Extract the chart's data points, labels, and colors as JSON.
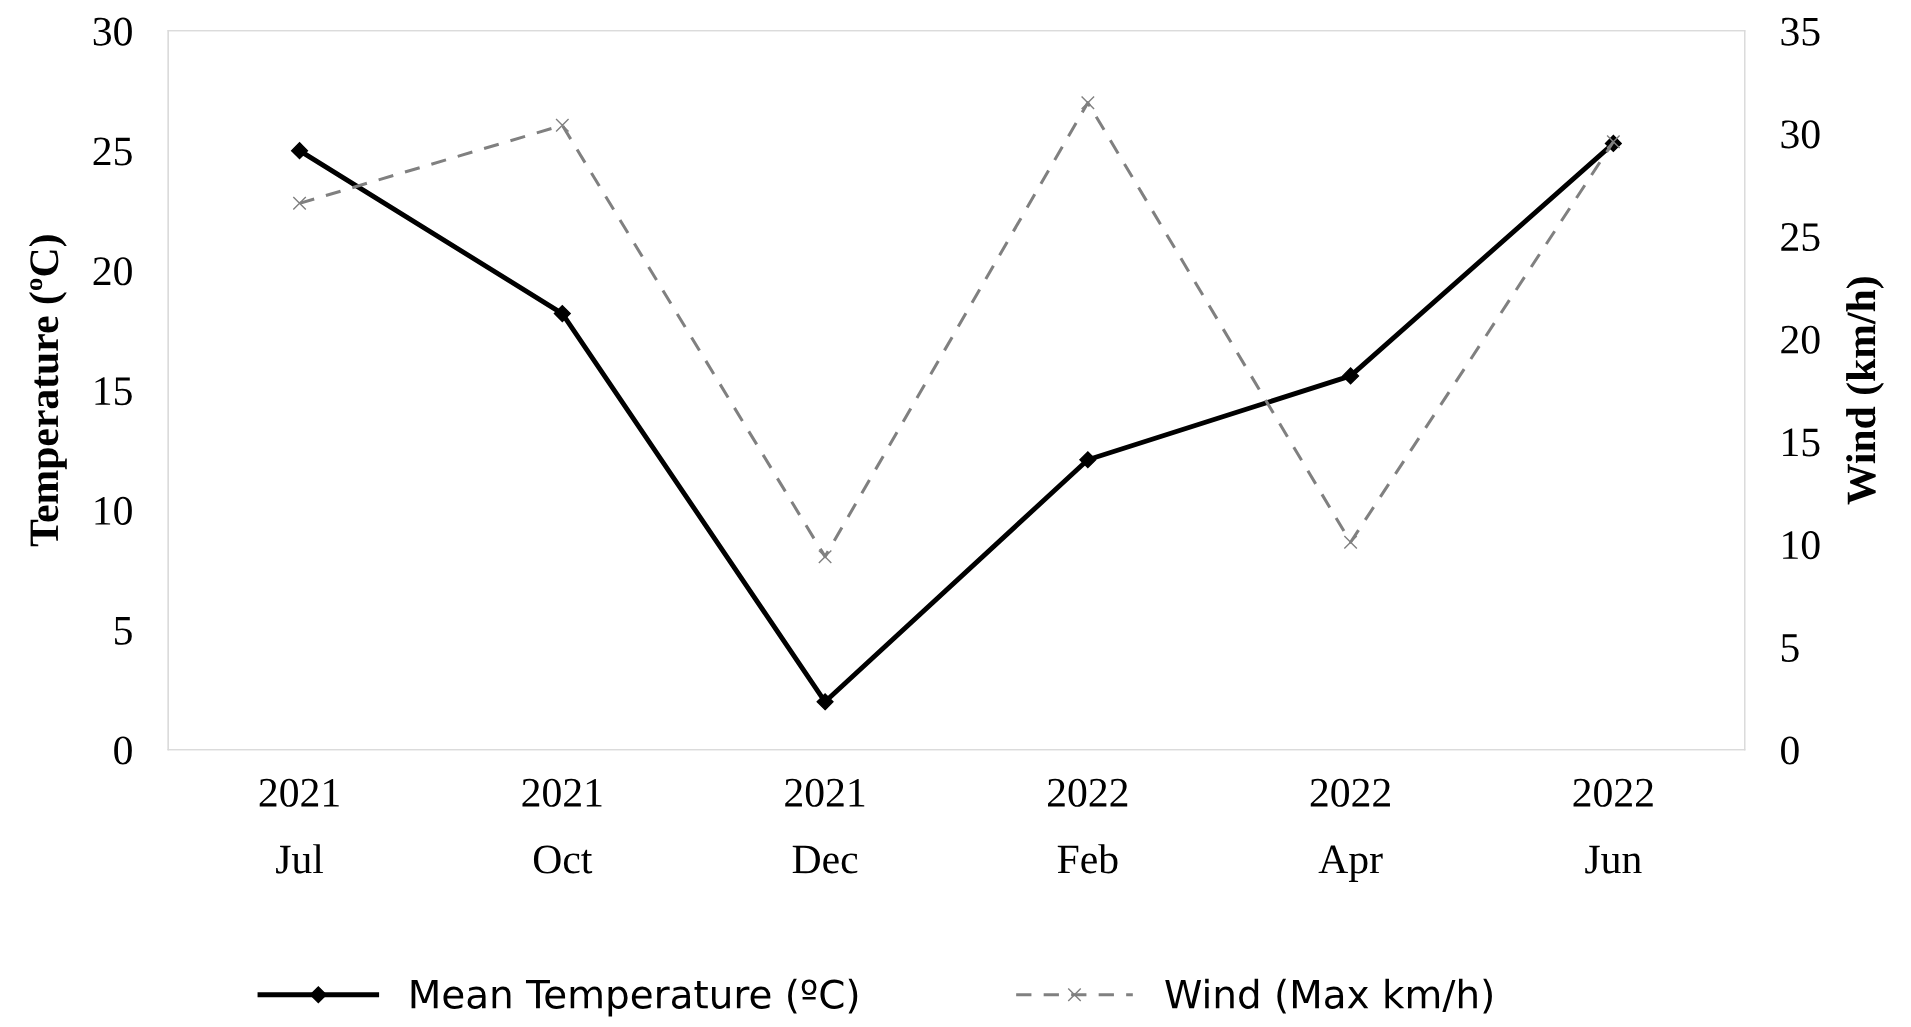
{
  "chart_data": {
    "type": "line",
    "categories": [
      "2021\nJul",
      "2021\nOct",
      "2021\nDec",
      "2022\nFeb",
      "2022\nApr",
      "2022\nJun"
    ],
    "ylabel": "Temperature (ºC)",
    "y2label": "Wind (km/h)",
    "series": [
      {
        "name": "Mean Temperature (ºC)",
        "color": "#000000",
        "marker": "diamond",
        "line_style": "solid",
        "values": [
          25.0,
          18.2,
          2.0,
          12.1,
          15.6,
          25.3
        ]
      },
      {
        "name": "Wind (Max km/h)",
        "color": "#808080",
        "marker": "cross",
        "line_style": "dashed",
        "axis": "y2",
        "values": [
          26.6,
          30.4,
          9.4,
          31.5,
          10.1,
          29.6
        ]
      }
    ],
    "ylim": [
      0,
      30
    ],
    "yticks": [
      0,
      5,
      10,
      15,
      20,
      25,
      30
    ],
    "y2lim": [
      0,
      35
    ],
    "y2ticks": [
      0,
      5,
      10,
      15,
      20,
      25,
      30,
      35
    ],
    "grid": false,
    "legend": "bottom"
  }
}
